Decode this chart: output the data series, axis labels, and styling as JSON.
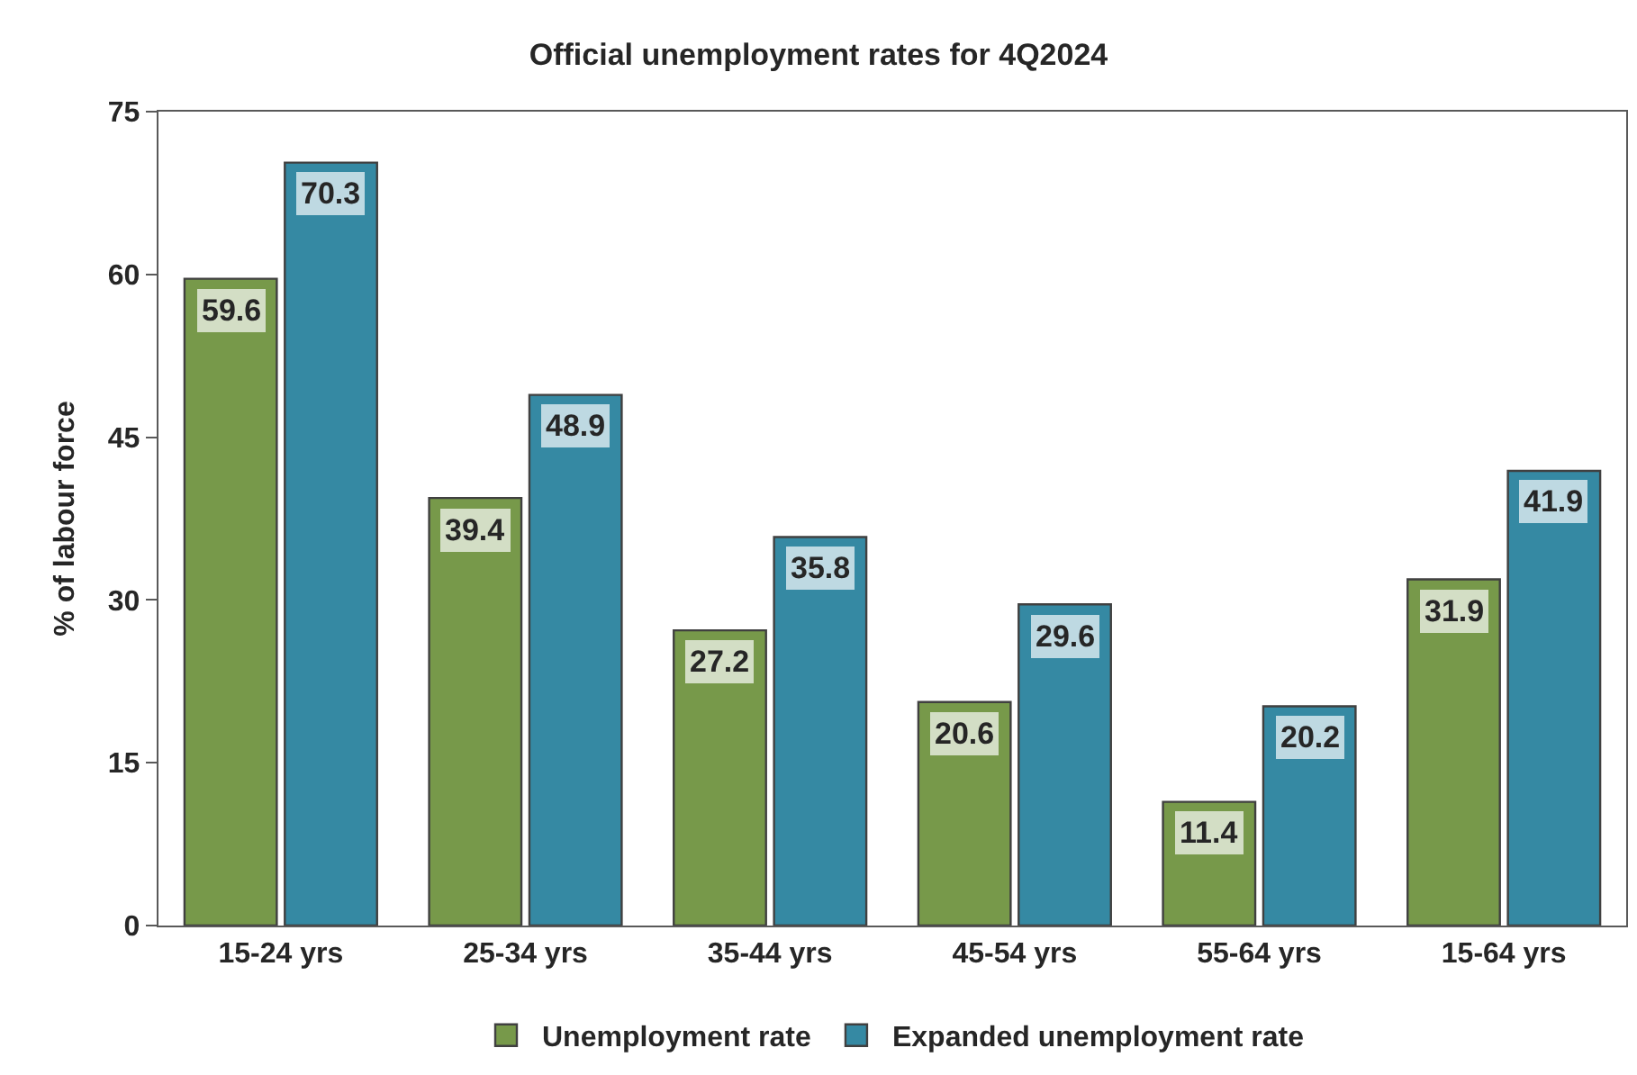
{
  "chart_data": {
    "type": "bar",
    "title": "Official unemployment rates for 4Q2024",
    "ylabel": "% of labour force",
    "categories": [
      "15-24 yrs",
      "25-34 yrs",
      "35-44 yrs",
      "45-54 yrs",
      "55-64 yrs",
      "15-64 yrs"
    ],
    "series": [
      {
        "name": "Unemployment rate",
        "color": "#77994a",
        "values": [
          59.6,
          39.4,
          27.2,
          20.6,
          11.4,
          31.9
        ]
      },
      {
        "name": "Expanded unemployment rate",
        "color": "#3589a3",
        "values": [
          70.3,
          48.9,
          35.8,
          29.6,
          20.2,
          41.9
        ]
      }
    ],
    "ylim": [
      0,
      75
    ],
    "yticks": [
      0,
      15,
      30,
      45,
      60,
      75
    ],
    "data_labels": true,
    "legend": "bottom"
  }
}
